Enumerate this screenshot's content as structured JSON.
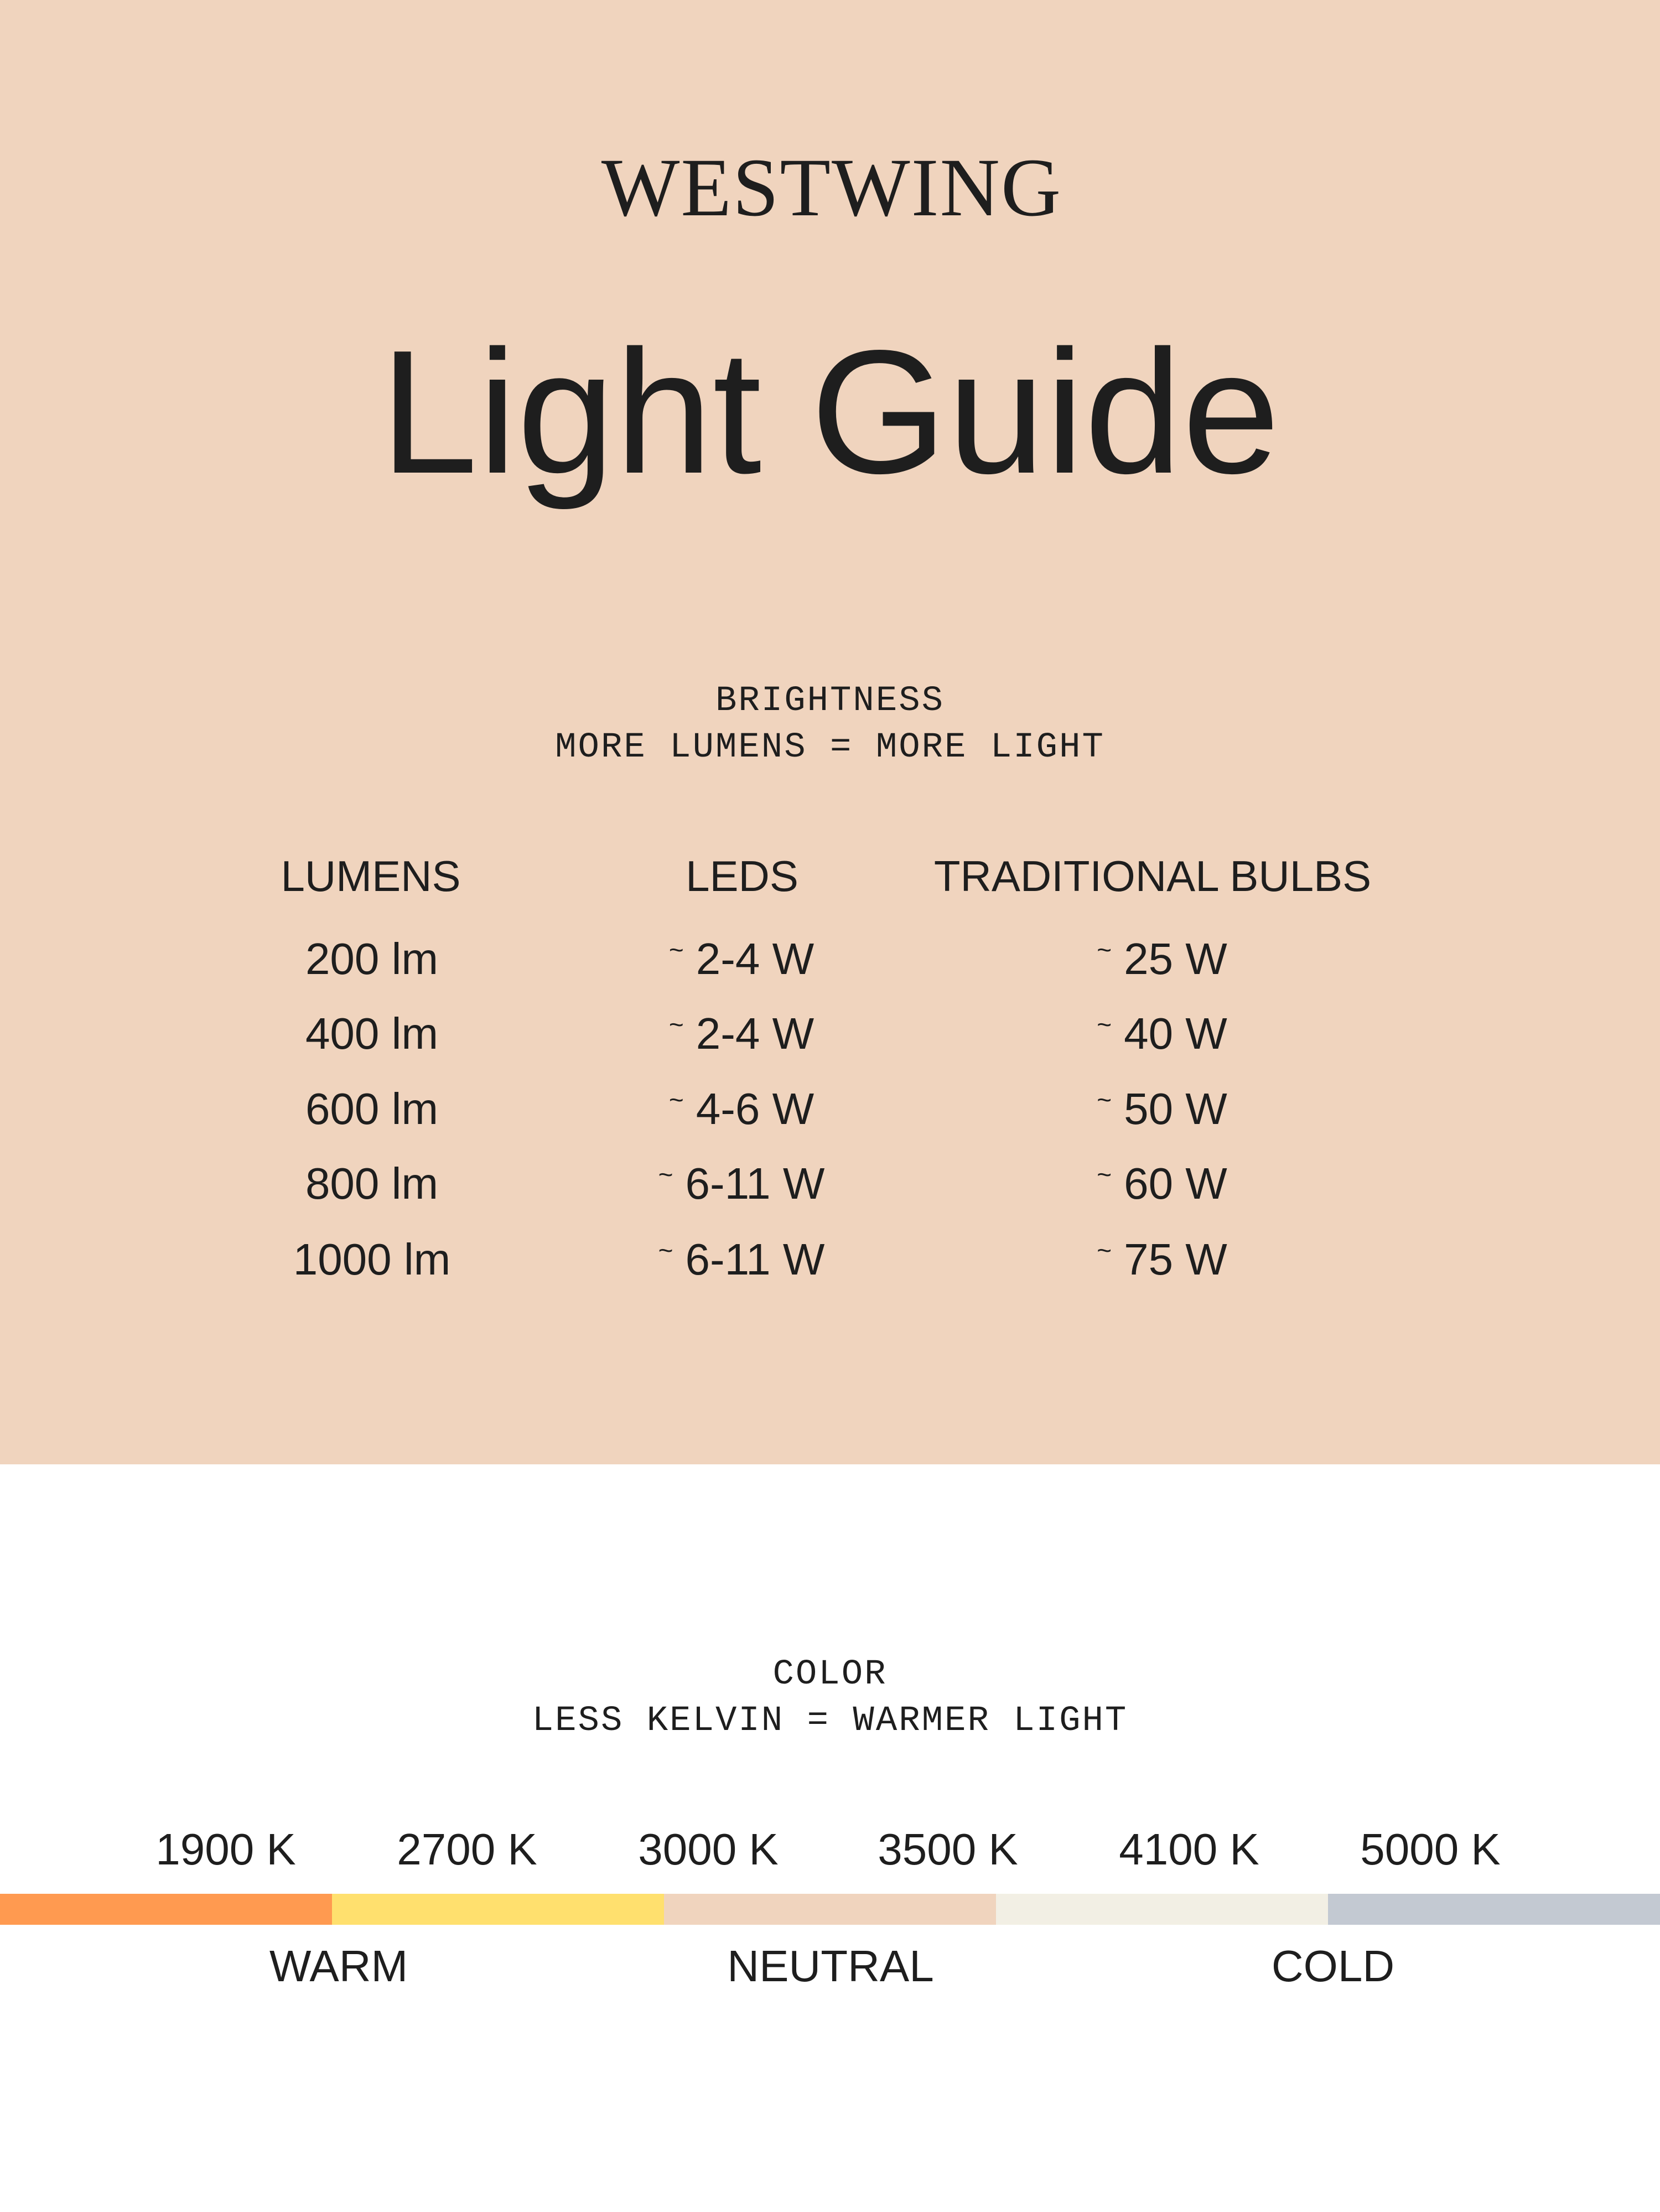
{
  "brand": "WESTWING",
  "title": "Light Guide",
  "brightness": {
    "heading": "BRIGHTNESS",
    "subheading": "MORE LUMENS = MORE LIGHT",
    "columns": [
      "LUMENS",
      "LEDS",
      "TRADITIONAL BULBS"
    ],
    "tilde": "~",
    "rows": [
      {
        "lumens": "200 lm",
        "leds": "2-4 W",
        "bulbs": "25 W"
      },
      {
        "lumens": "400 lm",
        "leds": "2-4 W",
        "bulbs": "40 W"
      },
      {
        "lumens": "600 lm",
        "leds": "4-6 W",
        "bulbs": "50 W"
      },
      {
        "lumens": "800 lm",
        "leds": "6-11 W",
        "bulbs": "60 W"
      },
      {
        "lumens": "1000 lm",
        "leds": "6-11 W",
        "bulbs": "75 W"
      }
    ]
  },
  "color": {
    "heading": "COLOR",
    "subheading": "LESS KELVIN = WARMER LIGHT",
    "kelvin": [
      "1900 K",
      "2700 K",
      "3000 K",
      "3500 K",
      "4100 K",
      "5000 K"
    ],
    "bar_colors": [
      "#ff9a50",
      "#ffe06e",
      "#f0d4be",
      "#f2efe4",
      "#c3c9d2"
    ],
    "categories": [
      "WARM",
      "NEUTRAL",
      "COLD"
    ]
  },
  "colors": {
    "background": "#f0d4be",
    "text": "#1e1e1e"
  }
}
